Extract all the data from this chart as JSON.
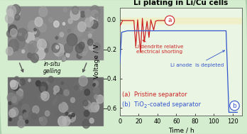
{
  "title": "Li plating in Li/Cu cells",
  "xlabel": "Time / h",
  "ylabel": "Voltage / V",
  "xlim": [
    0,
    130
  ],
  "ylim": [
    -0.65,
    0.08
  ],
  "yticks": [
    0.0,
    -0.2,
    -0.4,
    -0.6
  ],
  "xticks": [
    0,
    20,
    40,
    60,
    80,
    100,
    120
  ],
  "bg_color": "#d4edce",
  "plot_bg_color": "#eaf5e4",
  "highlight_color": "#f0f0c8",
  "curve_a_color": "#cc2222",
  "curve_b_color": "#3355cc",
  "label_a": "(a)  Pristine separator",
  "label_b_pre": "(b)  TiO",
  "label_b_post": "-coated separator",
  "annot_short": "Li dendrite relative\nelectrical shorting",
  "annot_deplete": "Li anode  is depleted",
  "insitu_text": "in-situ\ngelling",
  "title_fontsize": 7.5,
  "axis_fontsize": 6.5,
  "tick_fontsize": 6,
  "legend_fontsize": 6,
  "sem_top_color": "#8a8a8a",
  "sem_bot_color": "#6a6a6a",
  "arrow_color": "#555555"
}
